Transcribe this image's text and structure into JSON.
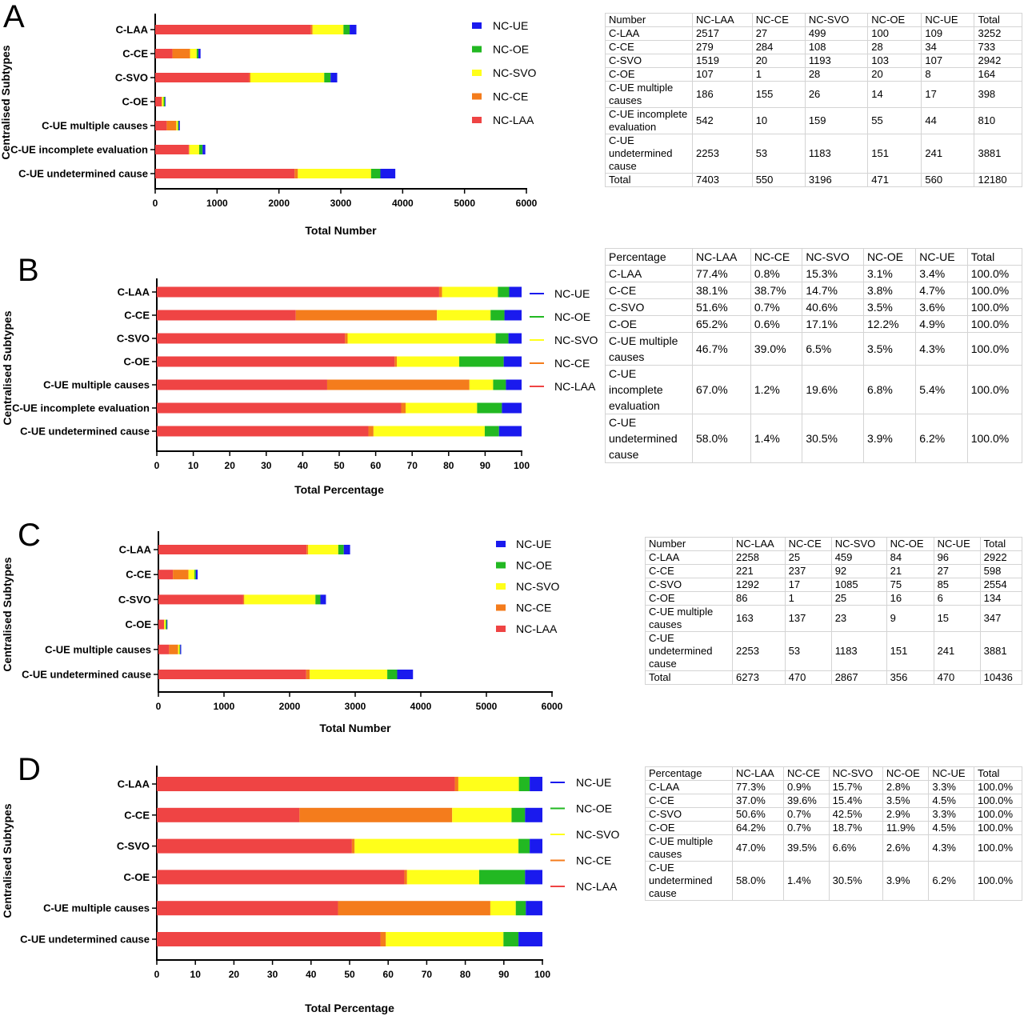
{
  "colors": {
    "NC-LAA": "#ef4444",
    "NC-CE": "#f47c1c",
    "NC-SVO": "#ffff1a",
    "NC-OE": "#22b822",
    "NC-UE": "#1a1aee"
  },
  "chart_data": [
    {
      "panel": "A",
      "type": "bar",
      "orientation": "horizontal",
      "stacked": true,
      "categories": [
        "C-LAA",
        "C-CE",
        "C-SVO",
        "C-OE",
        "C-UE multiple causes",
        "C-UE incomplete evaluation",
        "C-UE undetermined cause"
      ],
      "series": [
        {
          "name": "NC-LAA",
          "values": [
            2517,
            279,
            1519,
            107,
            186,
            542,
            2253
          ]
        },
        {
          "name": "NC-CE",
          "values": [
            27,
            284,
            20,
            1,
            155,
            10,
            53
          ]
        },
        {
          "name": "NC-SVO",
          "values": [
            499,
            108,
            1193,
            28,
            26,
            159,
            1183
          ]
        },
        {
          "name": "NC-OE",
          "values": [
            100,
            28,
            103,
            20,
            14,
            55,
            151
          ]
        },
        {
          "name": "NC-UE",
          "values": [
            109,
            34,
            107,
            8,
            17,
            44,
            241
          ]
        }
      ],
      "xlabel": "Total Number",
      "ylabel": "Centralised Subtypes",
      "xlim": [
        0,
        6000
      ],
      "xticks": [
        "0",
        "1000",
        "2000",
        "3000",
        "4000",
        "5000",
        "6000"
      ],
      "legend": [
        "NC-UE",
        "NC-OE",
        "NC-SVO",
        "NC-CE",
        "NC-LAA"
      ],
      "legend_style": "square",
      "table": {
        "header": [
          "Number",
          "NC-LAA",
          "NC-CE",
          "NC-SVO",
          "NC-OE",
          "NC-UE",
          "Total"
        ],
        "rows": [
          [
            "C-LAA",
            "2517",
            "27",
            "499",
            "100",
            "109",
            "3252"
          ],
          [
            "C-CE",
            "279",
            "284",
            "108",
            "28",
            "34",
            "733"
          ],
          [
            "C-SVO",
            "1519",
            "20",
            "1193",
            "103",
            "107",
            "2942"
          ],
          [
            "C-OE",
            "107",
            "1",
            "28",
            "20",
            "8",
            "164"
          ],
          [
            "C-UE multiple causes",
            "186",
            "155",
            "26",
            "14",
            "17",
            "398"
          ],
          [
            "C-UE incomplete evaluation",
            "542",
            "10",
            "159",
            "55",
            "44",
            "810"
          ],
          [
            "C-UE undetermined cause",
            "2253",
            "53",
            "1183",
            "151",
            "241",
            "3881"
          ],
          [
            "Total",
            "7403",
            "550",
            "3196",
            "471",
            "560",
            "12180"
          ]
        ]
      }
    },
    {
      "panel": "B",
      "type": "bar",
      "orientation": "horizontal",
      "stacked": true,
      "categories": [
        "C-LAA",
        "C-CE",
        "C-SVO",
        "C-OE",
        "C-UE multiple causes",
        "C-UE incomplete evaluation",
        "C-UE undetermined cause"
      ],
      "series": [
        {
          "name": "NC-LAA",
          "values": [
            77.4,
            38.1,
            51.6,
            65.2,
            46.7,
            67.0,
            58.0
          ]
        },
        {
          "name": "NC-CE",
          "values": [
            0.8,
            38.7,
            0.7,
            0.6,
            39.0,
            1.2,
            1.4
          ]
        },
        {
          "name": "NC-SVO",
          "values": [
            15.3,
            14.7,
            40.6,
            17.1,
            6.5,
            19.6,
            30.5
          ]
        },
        {
          "name": "NC-OE",
          "values": [
            3.1,
            3.8,
            3.5,
            12.2,
            3.5,
            6.8,
            3.9
          ]
        },
        {
          "name": "NC-UE",
          "values": [
            3.4,
            4.7,
            3.6,
            4.9,
            4.3,
            5.4,
            6.2
          ]
        }
      ],
      "xlabel": "Total Percentage",
      "ylabel": "Centralised  Subtypes",
      "xlim": [
        0,
        100
      ],
      "xticks": [
        "0",
        "10",
        "20",
        "30",
        "40",
        "50",
        "60",
        "70",
        "80",
        "90",
        "100"
      ],
      "legend": [
        "NC-UE",
        "NC-OE",
        "NC-SVO",
        "NC-CE",
        "NC-LAA"
      ],
      "legend_style": "line",
      "table": {
        "header": [
          "Percentage",
          "NC-LAA",
          "NC-CE",
          "NC-SVO",
          "NC-OE",
          "NC-UE",
          "Total"
        ],
        "rows": [
          [
            "C-LAA",
            "77.4%",
            "0.8%",
            "15.3%",
            "3.1%",
            "3.4%",
            "100.0%"
          ],
          [
            "C-CE",
            "38.1%",
            "38.7%",
            "14.7%",
            "3.8%",
            "4.7%",
            "100.0%"
          ],
          [
            "C-SVO",
            "51.6%",
            "0.7%",
            "40.6%",
            "3.5%",
            "3.6%",
            "100.0%"
          ],
          [
            "C-OE",
            "65.2%",
            "0.6%",
            "17.1%",
            "12.2%",
            "4.9%",
            "100.0%"
          ],
          [
            "C-UE multiple causes",
            "46.7%",
            "39.0%",
            "6.5%",
            "3.5%",
            "4.3%",
            "100.0%"
          ],
          [
            "C-UE incomplete evaluation",
            "67.0%",
            "1.2%",
            "19.6%",
            "6.8%",
            "5.4%",
            "100.0%"
          ],
          [
            "C-UE undetermined cause",
            "58.0%",
            "1.4%",
            "30.5%",
            "3.9%",
            "6.2%",
            "100.0%"
          ]
        ]
      }
    },
    {
      "panel": "C",
      "type": "bar",
      "orientation": "horizontal",
      "stacked": true,
      "categories": [
        "C-LAA",
        "C-CE",
        "C-SVO",
        "C-OE",
        "C-UE multiple causes",
        "C-UE undetermined cause"
      ],
      "series": [
        {
          "name": "NC-LAA",
          "values": [
            2258,
            221,
            1292,
            86,
            163,
            2253
          ]
        },
        {
          "name": "NC-CE",
          "values": [
            25,
            237,
            17,
            1,
            137,
            53
          ]
        },
        {
          "name": "NC-SVO",
          "values": [
            459,
            92,
            1085,
            25,
            23,
            1183
          ]
        },
        {
          "name": "NC-OE",
          "values": [
            84,
            21,
            75,
            16,
            9,
            151
          ]
        },
        {
          "name": "NC-UE",
          "values": [
            96,
            27,
            85,
            6,
            15,
            241
          ]
        }
      ],
      "xlabel": "Total Number",
      "ylabel": "Centralised Subtypes",
      "xlim": [
        0,
        6000
      ],
      "xticks": [
        "0",
        "1000",
        "2000",
        "3000",
        "4000",
        "5000",
        "6000"
      ],
      "legend": [
        "NC-UE",
        "NC-OE",
        "NC-SVO",
        "NC-CE",
        "NC-LAA"
      ],
      "legend_style": "square",
      "table": {
        "header": [
          "Number",
          "NC-LAA",
          "NC-CE",
          "NC-SVO",
          "NC-OE",
          "NC-UE",
          "Total"
        ],
        "rows": [
          [
            "C-LAA",
            "2258",
            "25",
            "459",
            "84",
            "96",
            "2922"
          ],
          [
            "C-CE",
            "221",
            "237",
            "92",
            "21",
            "27",
            "598"
          ],
          [
            "C-SVO",
            "1292",
            "17",
            "1085",
            "75",
            "85",
            "2554"
          ],
          [
            "C-OE",
            "86",
            "1",
            "25",
            "16",
            "6",
            "134"
          ],
          [
            "C-UE multiple causes",
            "163",
            "137",
            "23",
            "9",
            "15",
            "347"
          ],
          [
            "C-UE undetermined cause",
            "2253",
            "53",
            "1183",
            "151",
            "241",
            "3881"
          ],
          [
            "Total",
            "6273",
            "470",
            "2867",
            "356",
            "470",
            "10436"
          ]
        ]
      }
    },
    {
      "panel": "D",
      "type": "bar",
      "orientation": "horizontal",
      "stacked": true,
      "categories": [
        "C-LAA",
        "C-CE",
        "C-SVO",
        "C-OE",
        "C-UE multiple causes",
        "C-UE undetermined cause"
      ],
      "series": [
        {
          "name": "NC-LAA",
          "values": [
            77.3,
            37.0,
            50.6,
            64.2,
            47.0,
            58.0
          ]
        },
        {
          "name": "NC-CE",
          "values": [
            0.9,
            39.6,
            0.7,
            0.7,
            39.5,
            1.4
          ]
        },
        {
          "name": "NC-SVO",
          "values": [
            15.7,
            15.4,
            42.5,
            18.7,
            6.6,
            30.5
          ]
        },
        {
          "name": "NC-OE",
          "values": [
            2.8,
            3.5,
            2.9,
            11.9,
            2.6,
            3.9
          ]
        },
        {
          "name": "NC-UE",
          "values": [
            3.3,
            4.5,
            3.3,
            4.5,
            4.3,
            6.2
          ]
        }
      ],
      "xlabel": "Total Percentage",
      "ylabel": "Centralised Subtypes",
      "xlim": [
        0,
        100
      ],
      "xticks": [
        "0",
        "10",
        "20",
        "30",
        "40",
        "50",
        "60",
        "70",
        "80",
        "90",
        "100"
      ],
      "legend": [
        "NC-UE",
        "NC-OE",
        "NC-SVO",
        "NC-CE",
        "NC-LAA"
      ],
      "legend_style": "line",
      "table": {
        "header": [
          "Percentage",
          "NC-LAA",
          "NC-CE",
          "NC-SVO",
          "NC-OE",
          "NC-UE",
          "Total"
        ],
        "rows": [
          [
            "C-LAA",
            "77.3%",
            "0.9%",
            "15.7%",
            "2.8%",
            "3.3%",
            "100.0%"
          ],
          [
            "C-CE",
            "37.0%",
            "39.6%",
            "15.4%",
            "3.5%",
            "4.5%",
            "100.0%"
          ],
          [
            "C-SVO",
            "50.6%",
            "0.7%",
            "42.5%",
            "2.9%",
            "3.3%",
            "100.0%"
          ],
          [
            "C-OE",
            "64.2%",
            "0.7%",
            "18.7%",
            "11.9%",
            "4.5%",
            "100.0%"
          ],
          [
            "C-UE multiple causes",
            "47.0%",
            "39.5%",
            "6.6%",
            "2.6%",
            "4.3%",
            "100.0%"
          ],
          [
            "C-UE undetermined cause",
            "58.0%",
            "1.4%",
            "30.5%",
            "3.9%",
            "6.2%",
            "100.0%"
          ]
        ]
      }
    }
  ]
}
